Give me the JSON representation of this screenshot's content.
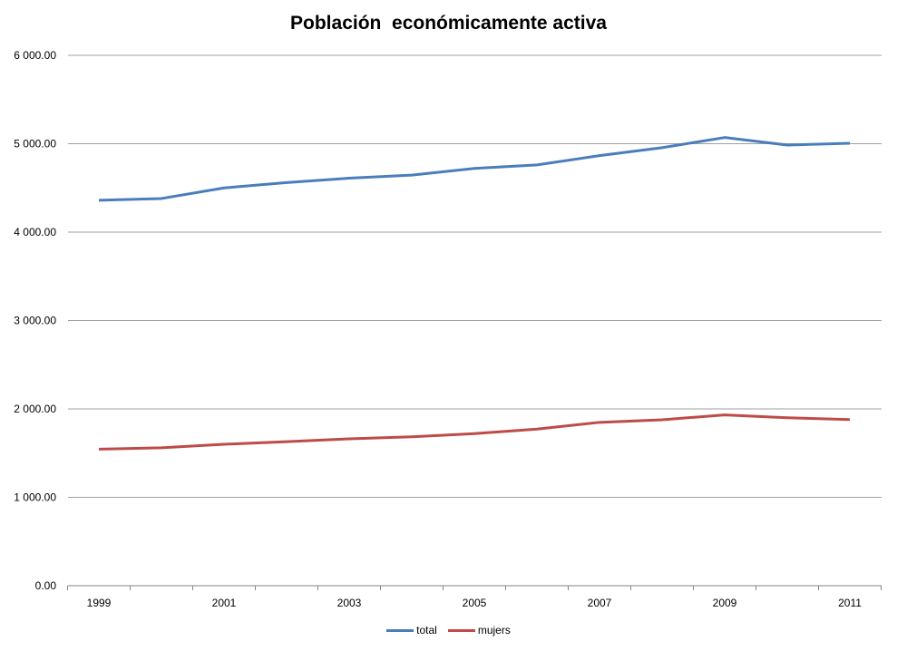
{
  "chart_data": {
    "type": "line",
    "title": "Población  económicamente activa",
    "xlabel": "",
    "ylabel": "",
    "x": [
      1999,
      2000,
      2001,
      2002,
      2003,
      2004,
      2005,
      2006,
      2007,
      2008,
      2009,
      2010,
      2011
    ],
    "x_tick_labels": [
      "1999",
      "2001",
      "2003",
      "2005",
      "2007",
      "2009",
      "2011"
    ],
    "y_tick_labels": [
      "0.00",
      "1 000.00",
      "2 000.00",
      "3 000.00",
      "4 000.00",
      "5 000.00",
      "6 000.00"
    ],
    "ylim": [
      0,
      6000
    ],
    "grid": true,
    "legend_position": "bottom",
    "series": [
      {
        "name": "total",
        "color": "#4a7ebb",
        "values": [
          4360,
          4380,
          4500,
          4560,
          4610,
          4645,
          4720,
          4760,
          4865,
          4955,
          5070,
          4985,
          5005
        ]
      },
      {
        "name": "mujers",
        "color": "#be4b48",
        "values": [
          1545,
          1560,
          1600,
          1630,
          1662,
          1685,
          1720,
          1772,
          1848,
          1877,
          1932,
          1900,
          1880
        ]
      }
    ]
  }
}
